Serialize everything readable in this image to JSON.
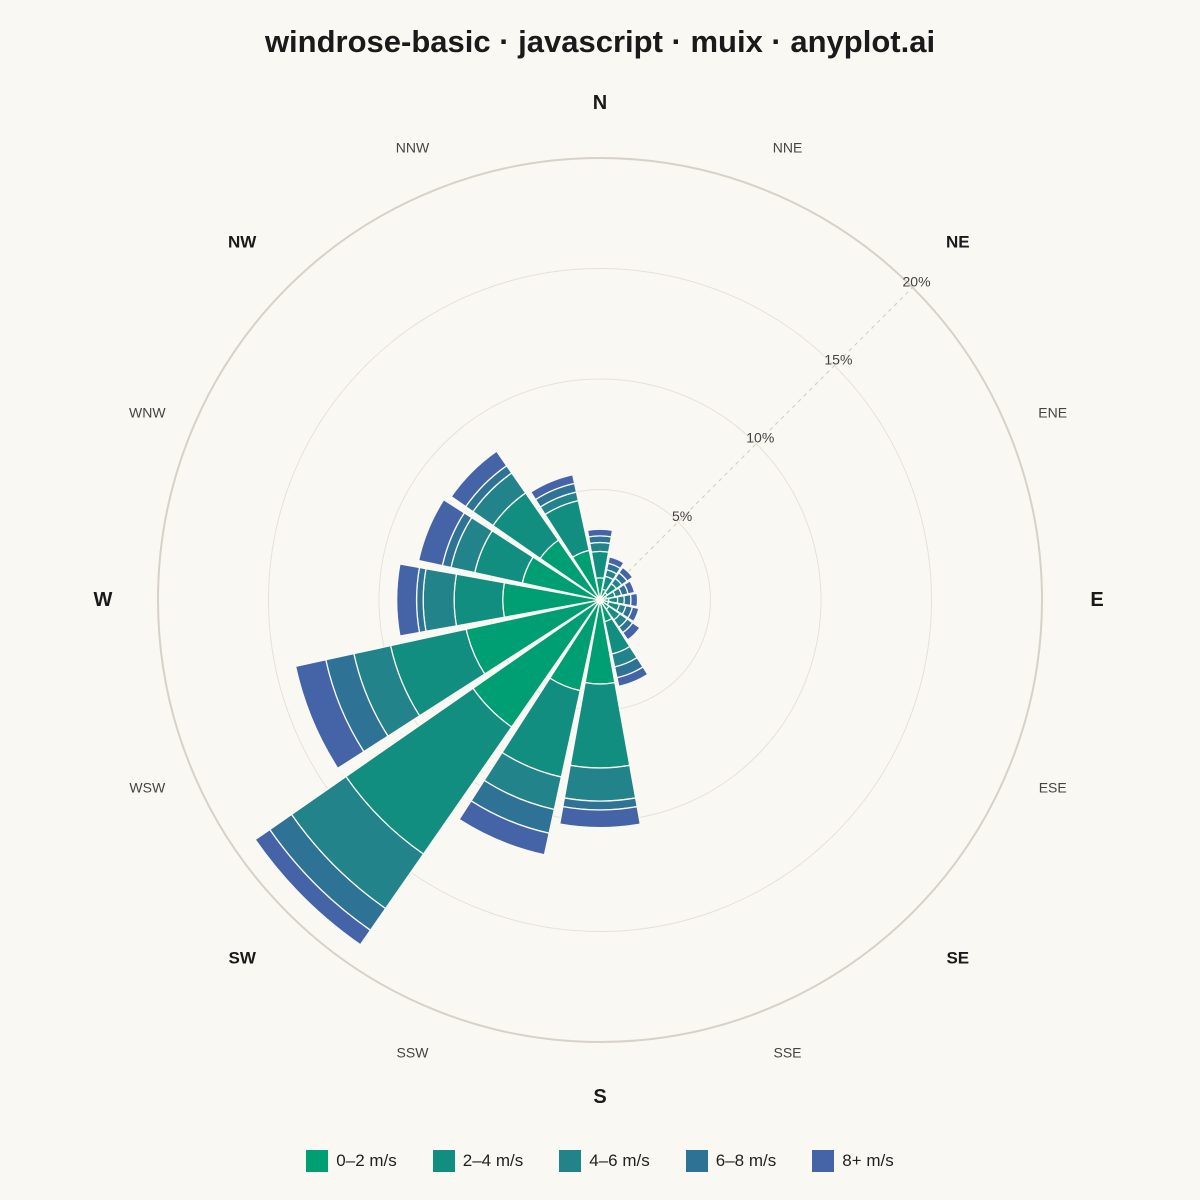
{
  "chart_data": {
    "type": "windrose",
    "title": "windrose-basic · javascript · muix · anyplot.ai",
    "directions": [
      "N",
      "NNE",
      "NE",
      "ENE",
      "E",
      "ESE",
      "SE",
      "SSE",
      "S",
      "SSW",
      "SW",
      "WSW",
      "W",
      "WNW",
      "NW",
      "NNW"
    ],
    "radial_ticks": [
      5,
      10,
      15,
      20
    ],
    "radial_tick_labels": [
      "5%",
      "10%",
      "15%",
      "20%"
    ],
    "rmax": 20,
    "tick_angle_direction": "NE",
    "series": [
      {
        "name": "0–2 m/s",
        "color": "#009E73",
        "values": [
          1.0,
          0.5,
          0.4,
          0.3,
          0.4,
          0.4,
          0.5,
          1.0,
          3.8,
          4.2,
          7.0,
          6.2,
          4.4,
          3.6,
          3.3,
          2.3
        ]
      },
      {
        "name": "2–4 m/s",
        "color": "#128E80",
        "values": [
          1.2,
          0.6,
          0.5,
          0.4,
          0.4,
          0.5,
          0.6,
          1.5,
          3.8,
          4.0,
          7.0,
          3.5,
          2.2,
          2.2,
          2.6,
          2.3
        ]
      },
      {
        "name": "4–6 m/s",
        "color": "#22838A",
        "values": [
          0.4,
          0.3,
          0.3,
          0.3,
          0.3,
          0.3,
          0.4,
          0.6,
          1.5,
          1.5,
          3.0,
          1.7,
          1.4,
          1.1,
          1.1,
          0.4
        ]
      },
      {
        "name": "6–8 m/s",
        "color": "#2E7396",
        "values": [
          0.3,
          0.3,
          0.3,
          0.3,
          0.3,
          0.3,
          0.3,
          0.5,
          0.4,
          1.1,
          1.2,
          1.3,
          0.3,
          0.4,
          0.4,
          0.4
        ]
      },
      {
        "name": "8+ m/s",
        "color": "#4564A8",
        "values": [
          0.3,
          0.3,
          0.3,
          0.3,
          0.3,
          0.3,
          0.4,
          0.4,
          0.8,
          1.0,
          0.8,
          1.4,
          0.9,
          1.1,
          0.8,
          0.4
        ]
      }
    ]
  }
}
